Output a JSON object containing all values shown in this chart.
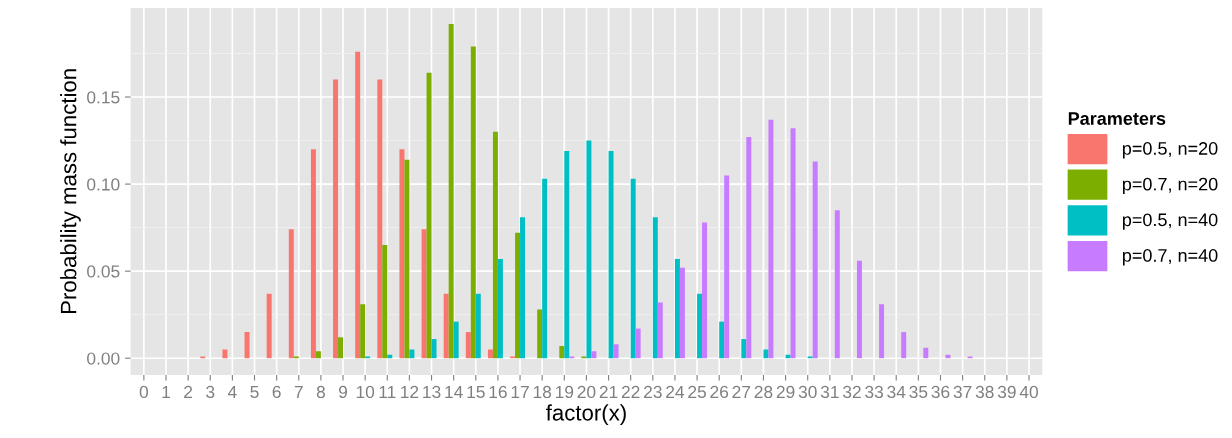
{
  "chart_data": {
    "type": "bar",
    "xlabel": "factor(x)",
    "ylabel": "Probability mass function",
    "legend_title": "Parameters",
    "categories": [
      "0",
      "1",
      "2",
      "3",
      "4",
      "5",
      "6",
      "7",
      "8",
      "9",
      "10",
      "11",
      "12",
      "13",
      "14",
      "15",
      "16",
      "17",
      "18",
      "19",
      "20",
      "21",
      "22",
      "23",
      "24",
      "25",
      "26",
      "27",
      "28",
      "29",
      "30",
      "31",
      "32",
      "33",
      "34",
      "35",
      "36",
      "37",
      "38",
      "39",
      "40"
    ],
    "series": [
      {
        "name": "p=0.5, n=20",
        "color": "#f8766d",
        "values": [
          0,
          0,
          0,
          0.001,
          0.005,
          0.015,
          0.037,
          0.074,
          0.12,
          0.16,
          0.176,
          0.16,
          0.12,
          0.074,
          0.037,
          0.015,
          0.005,
          0.001,
          0,
          0,
          0,
          0,
          0,
          0,
          0,
          0,
          0,
          0,
          0,
          0,
          0,
          0,
          0,
          0,
          0,
          0,
          0,
          0,
          0,
          0,
          0
        ]
      },
      {
        "name": "p=0.7, n=20",
        "color": "#7cae00",
        "values": [
          0,
          0,
          0,
          0,
          0,
          0,
          0,
          0.001,
          0.004,
          0.012,
          0.031,
          0.065,
          0.114,
          0.164,
          0.192,
          0.179,
          0.13,
          0.072,
          0.028,
          0.007,
          0.001,
          0,
          0,
          0,
          0,
          0,
          0,
          0,
          0,
          0,
          0,
          0,
          0,
          0,
          0,
          0,
          0,
          0,
          0,
          0,
          0
        ]
      },
      {
        "name": "p=0.5, n=40",
        "color": "#00bfc4",
        "values": [
          0,
          0,
          0,
          0,
          0,
          0,
          0,
          0,
          0,
          0,
          0.001,
          0.002,
          0.005,
          0.011,
          0.021,
          0.037,
          0.057,
          0.081,
          0.103,
          0.119,
          0.125,
          0.119,
          0.103,
          0.081,
          0.057,
          0.037,
          0.021,
          0.011,
          0.005,
          0.002,
          0.001,
          0,
          0,
          0,
          0,
          0,
          0,
          0,
          0,
          0,
          0
        ]
      },
      {
        "name": "p=0.7, n=40",
        "color": "#c77cff",
        "values": [
          0,
          0,
          0,
          0,
          0,
          0,
          0,
          0,
          0,
          0,
          0,
          0,
          0,
          0,
          0,
          0,
          0,
          0,
          0,
          0.001,
          0.004,
          0.008,
          0.017,
          0.032,
          0.052,
          0.078,
          0.105,
          0.127,
          0.137,
          0.132,
          0.113,
          0.085,
          0.056,
          0.031,
          0.015,
          0.006,
          0.002,
          0.001,
          0,
          0,
          0
        ]
      }
    ],
    "ylim": [
      -0.0096,
      0.2012
    ],
    "yticks": [
      {
        "value": 0,
        "label": "0.00"
      },
      {
        "value": 0.05,
        "label": "0.05"
      },
      {
        "value": 0.1,
        "label": "0.10"
      },
      {
        "value": 0.15,
        "label": "0.15"
      }
    ],
    "grid": true,
    "legend": "right"
  }
}
